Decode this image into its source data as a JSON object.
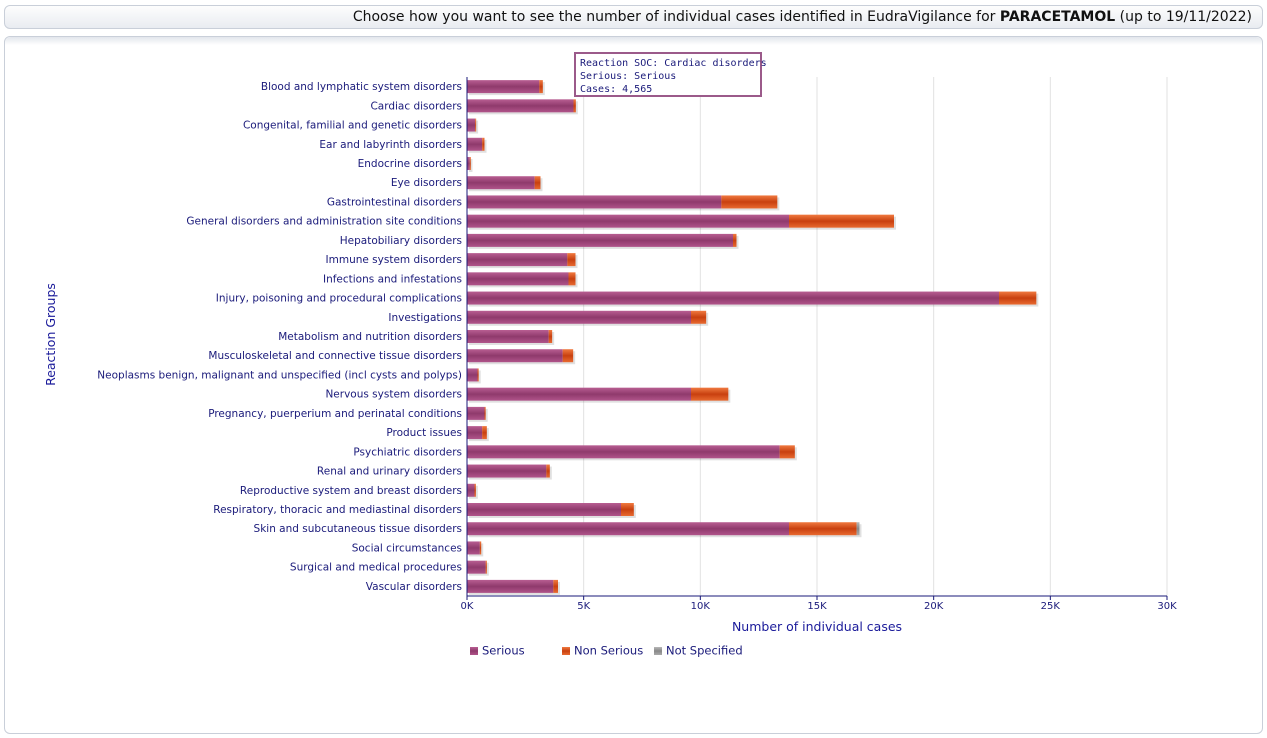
{
  "header": {
    "title_prefix": "Choose how you want to see the number of individual cases identified in EudraVigilance for",
    "product": "PARACETAMOL",
    "title_suffix": "(up to 19/11/2022)"
  },
  "tooltip": {
    "line1": "Reaction SOC: Cardiac disorders",
    "line2": "Serious: Serious",
    "line3": "Cases: 4,565"
  },
  "colors": {
    "serious": "#a0467a",
    "non_serious": "#e05a20",
    "not_specified": "#9a9a9a"
  },
  "chart_data": {
    "type": "bar",
    "orientation": "horizontal",
    "stacked": true,
    "title": "",
    "xlabel": "Number of individual cases",
    "ylabel": "Reaction Groups",
    "xlim": [
      0,
      30000
    ],
    "xticks": [
      "0K",
      "5K",
      "10K",
      "15K",
      "20K",
      "25K",
      "30K"
    ],
    "grid": true,
    "legend_position": "bottom",
    "categories": [
      "Blood and lymphatic system disorders",
      "Cardiac disorders",
      "Congenital, familial and genetic disorders",
      "Ear and labyrinth disorders",
      "Endocrine disorders",
      "Eye disorders",
      "Gastrointestinal disorders",
      "General disorders and administration site conditions",
      "Hepatobiliary disorders",
      "Immune system disorders",
      "Infections and infestations",
      "Injury, poisoning and procedural complications",
      "Investigations",
      "Metabolism and nutrition disorders",
      "Musculoskeletal and connective tissue disorders",
      "Neoplasms benign, malignant and unspecified (incl cysts and polyps)",
      "Nervous system disorders",
      "Pregnancy, puerperium and perinatal conditions",
      "Product issues",
      "Psychiatric disorders",
      "Renal and urinary disorders",
      "Reproductive system and breast disorders",
      "Respiratory, thoracic and mediastinal disorders",
      "Skin and subcutaneous tissue disorders",
      "Social circumstances",
      "Surgical and medical procedures",
      "Vascular disorders"
    ],
    "series": [
      {
        "name": "Serious",
        "values": [
          3100,
          4565,
          350,
          650,
          120,
          2900,
          10900,
          13800,
          11400,
          4300,
          4350,
          22800,
          9600,
          3500,
          4100,
          450,
          9600,
          750,
          650,
          13400,
          3400,
          320,
          6600,
          13800,
          550,
          800,
          3700
        ]
      },
      {
        "name": "Non Serious",
        "values": [
          150,
          100,
          40,
          100,
          30,
          250,
          2400,
          4500,
          150,
          350,
          300,
          1600,
          650,
          150,
          450,
          50,
          1600,
          50,
          200,
          650,
          150,
          60,
          550,
          2900,
          60,
          50,
          200
        ]
      },
      {
        "name": "Not Specified",
        "values": [
          0,
          0,
          0,
          0,
          0,
          0,
          0,
          0,
          0,
          0,
          0,
          0,
          0,
          0,
          0,
          0,
          0,
          0,
          0,
          0,
          0,
          0,
          0,
          120,
          0,
          0,
          0
        ]
      }
    ]
  }
}
